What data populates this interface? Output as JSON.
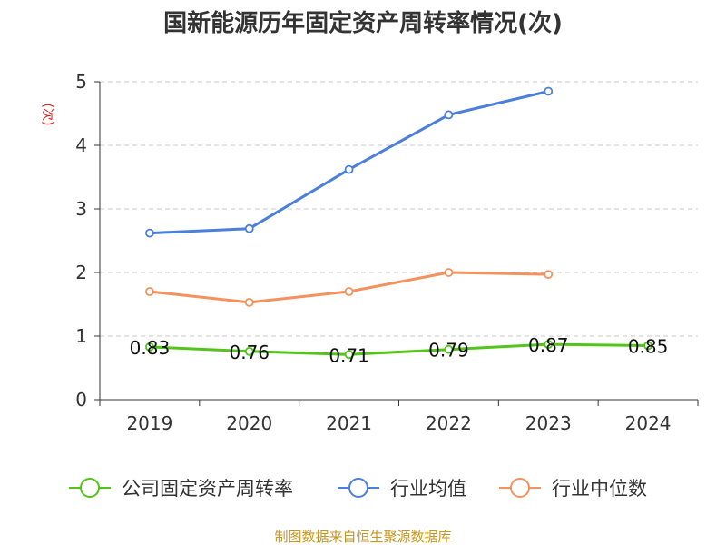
{
  "chart_data": {
    "type": "line",
    "title": "国新能源历年固定资产周转率情况(次)",
    "ylabel": "(次)",
    "ylim": [
      0,
      5
    ],
    "yticks": [
      "0",
      "1",
      "2",
      "3",
      "4",
      "5"
    ],
    "categories": [
      "2019",
      "2020",
      "2021",
      "2022",
      "2023",
      "2024"
    ],
    "grid": true,
    "legend_position": "bottom",
    "series": [
      {
        "name": "公司固定资产周转率",
        "color": "#52c41a",
        "values": [
          0.83,
          0.76,
          0.71,
          0.79,
          0.87,
          0.85
        ],
        "labels": [
          "0.83",
          "0.76",
          "0.71",
          "0.79",
          "0.87",
          "0.85"
        ]
      },
      {
        "name": "行业均值",
        "color": "#4a7fdb",
        "values": [
          2.62,
          2.69,
          3.62,
          4.48,
          4.85,
          null
        ]
      },
      {
        "name": "行业中位数",
        "color": "#f4925d",
        "values": [
          1.7,
          1.53,
          1.7,
          2.0,
          1.97,
          null
        ]
      }
    ],
    "source": "制图数据来自恒生聚源数据库"
  }
}
